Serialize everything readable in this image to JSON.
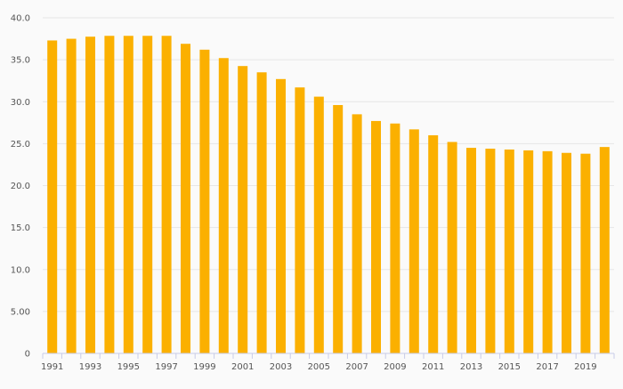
{
  "chart_data": {
    "type": "bar",
    "title": "",
    "xlabel": "",
    "ylabel": "",
    "ylim": [
      0,
      40
    ],
    "grid": true,
    "legend": "none",
    "bar_color": "#fbb000",
    "y_ticks": [
      {
        "value": 0,
        "label": "0"
      },
      {
        "value": 5,
        "label": "5.00"
      },
      {
        "value": 10,
        "label": "10.0"
      },
      {
        "value": 15,
        "label": "15.0"
      },
      {
        "value": 20,
        "label": "20.0"
      },
      {
        "value": 25,
        "label": "25.0"
      },
      {
        "value": 30,
        "label": "30.0"
      },
      {
        "value": 35,
        "label": "35.0"
      },
      {
        "value": 40,
        "label": "40.0"
      }
    ],
    "categories": [
      "1991",
      "1992",
      "1993",
      "1994",
      "1995",
      "1996",
      "1997",
      "1998",
      "1999",
      "2000",
      "2001",
      "2002",
      "2003",
      "2004",
      "2005",
      "2006",
      "2007",
      "2008",
      "2009",
      "2010",
      "2011",
      "2012",
      "2013",
      "2014",
      "2015",
      "2016",
      "2017",
      "2018",
      "2019",
      "2020"
    ],
    "x_tick_labels": [
      "1991",
      "1993",
      "1995",
      "1997",
      "1999",
      "2001",
      "2003",
      "2005",
      "2007",
      "2009",
      "2011",
      "2013",
      "2015",
      "2017",
      "2019"
    ],
    "values": [
      37.3,
      37.5,
      37.75,
      37.85,
      37.85,
      37.85,
      37.85,
      36.9,
      36.2,
      35.2,
      34.25,
      33.5,
      32.7,
      31.7,
      30.6,
      29.6,
      28.5,
      27.7,
      27.4,
      26.7,
      26.0,
      25.2,
      24.5,
      24.4,
      24.3,
      24.2,
      24.1,
      23.9,
      23.8,
      24.6
    ]
  }
}
